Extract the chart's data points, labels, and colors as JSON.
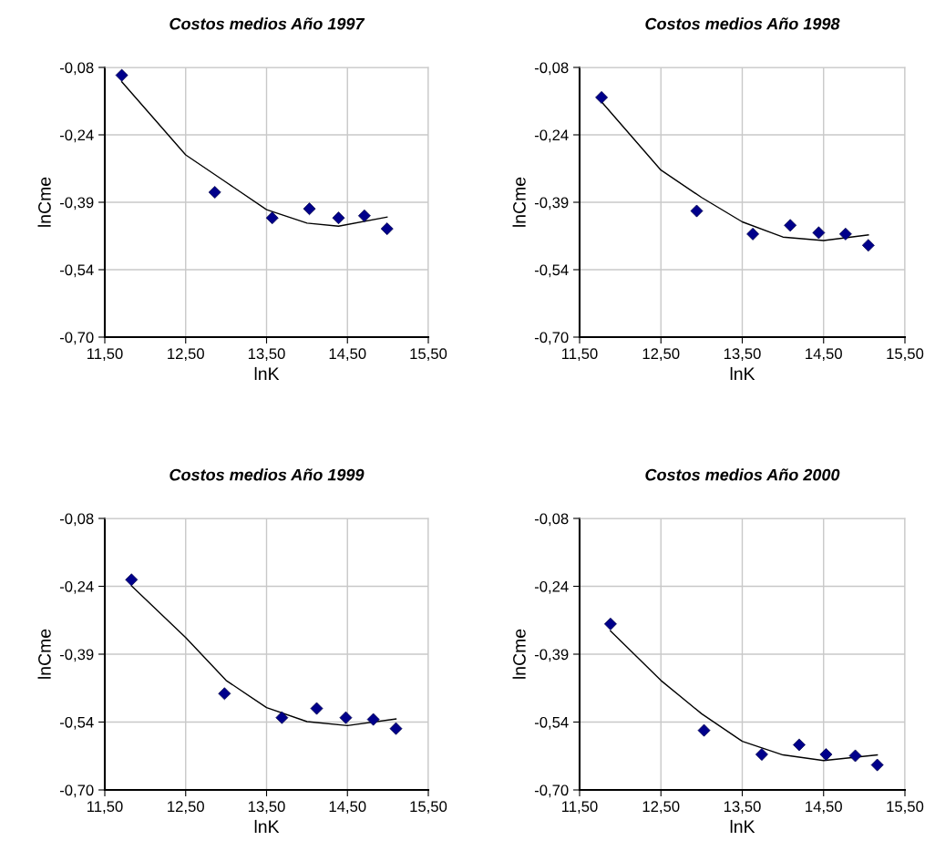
{
  "chart_data": [
    {
      "type": "scatter",
      "title": "Costos medios Año 1997",
      "xlabel": "lnK",
      "ylabel": "lnCme",
      "xlim": [
        11.5,
        15.5
      ],
      "ylim": [
        -0.7,
        -0.08
      ],
      "xticks": [
        {
          "value": 11.5,
          "label": "11,50"
        },
        {
          "value": 12.5,
          "label": "12,50"
        },
        {
          "value": 13.5,
          "label": "13,50"
        },
        {
          "value": 14.5,
          "label": "14,50"
        },
        {
          "value": 15.5,
          "label": "15,50"
        }
      ],
      "yticks": [
        {
          "value": -0.7,
          "label": "-0,70"
        },
        {
          "value": -0.545,
          "label": "-0,54"
        },
        {
          "value": -0.39,
          "label": "-0,39"
        },
        {
          "value": -0.235,
          "label": "-0,24"
        },
        {
          "value": -0.08,
          "label": "-0,08"
        }
      ],
      "grid": true,
      "series": [
        {
          "marker": "diamond",
          "color": "#00008b",
          "x": [
            11.71,
            12.86,
            13.57,
            14.03,
            14.39,
            14.71,
            14.99
          ],
          "values": [
            -0.098,
            -0.367,
            -0.426,
            -0.405,
            -0.426,
            -0.421,
            -0.451
          ]
        },
        {
          "type": "line",
          "marker": "none",
          "line_style": "solid",
          "color": "#000000",
          "x": [
            11.71,
            12.5,
            13.0,
            13.5,
            14.0,
            14.39,
            14.99
          ],
          "values": [
            -0.113,
            -0.281,
            -0.344,
            -0.407,
            -0.438,
            -0.445,
            -0.424
          ]
        }
      ]
    },
    {
      "type": "scatter",
      "title": "Costos medios Año 1998",
      "xlabel": "lnK",
      "ylabel": "lnCme",
      "xlim": [
        11.5,
        15.5
      ],
      "ylim": [
        -0.7,
        -0.08
      ],
      "xticks": [
        {
          "value": 11.5,
          "label": "11,50"
        },
        {
          "value": 12.5,
          "label": "12,50"
        },
        {
          "value": 13.5,
          "label": "13,50"
        },
        {
          "value": 14.5,
          "label": "14,50"
        },
        {
          "value": 15.5,
          "label": "15,50"
        }
      ],
      "yticks": [
        {
          "value": -0.7,
          "label": "-0,70"
        },
        {
          "value": -0.545,
          "label": "-0,54"
        },
        {
          "value": -0.39,
          "label": "-0,39"
        },
        {
          "value": -0.235,
          "label": "-0,24"
        },
        {
          "value": -0.08,
          "label": "-0,08"
        }
      ],
      "grid": true,
      "series": [
        {
          "marker": "diamond",
          "color": "#00008b",
          "x": [
            11.77,
            12.94,
            13.63,
            14.09,
            14.44,
            14.77,
            15.05
          ],
          "values": [
            -0.149,
            -0.41,
            -0.463,
            -0.443,
            -0.46,
            -0.463,
            -0.489
          ]
        },
        {
          "type": "line",
          "marker": "none",
          "line_style": "solid",
          "color": "#000000",
          "x": [
            11.77,
            12.5,
            13.0,
            13.5,
            14.0,
            14.5,
            15.05
          ],
          "values": [
            -0.159,
            -0.316,
            -0.379,
            -0.435,
            -0.47,
            -0.478,
            -0.465
          ]
        }
      ]
    },
    {
      "type": "scatter",
      "title": "Costos medios Año 1999",
      "xlabel": "lnK",
      "ylabel": "lnCme",
      "xlim": [
        11.5,
        15.5
      ],
      "ylim": [
        -0.7,
        -0.08
      ],
      "xticks": [
        {
          "value": 11.5,
          "label": "11,50"
        },
        {
          "value": 12.5,
          "label": "12,50"
        },
        {
          "value": 13.5,
          "label": "13,50"
        },
        {
          "value": 14.5,
          "label": "14,50"
        },
        {
          "value": 15.5,
          "label": "15,50"
        }
      ],
      "yticks": [
        {
          "value": -0.7,
          "label": "-0,70"
        },
        {
          "value": -0.545,
          "label": "-0,54"
        },
        {
          "value": -0.39,
          "label": "-0,39"
        },
        {
          "value": -0.235,
          "label": "-0,24"
        },
        {
          "value": -0.08,
          "label": "-0,08"
        }
      ],
      "grid": true,
      "series": [
        {
          "marker": "diamond",
          "color": "#00008b",
          "x": [
            11.83,
            12.98,
            13.69,
            14.12,
            14.48,
            14.82,
            15.1
          ],
          "values": [
            -0.22,
            -0.48,
            -0.535,
            -0.514,
            -0.535,
            -0.539,
            -0.56
          ]
        },
        {
          "type": "line",
          "marker": "none",
          "line_style": "solid",
          "color": "#000000",
          "x": [
            11.83,
            12.5,
            13.0,
            13.5,
            14.0,
            14.5,
            15.1
          ],
          "values": [
            -0.234,
            -0.352,
            -0.45,
            -0.512,
            -0.544,
            -0.553,
            -0.538
          ]
        }
      ]
    },
    {
      "type": "scatter",
      "title": "Costos medios Año 2000",
      "xlabel": "lnK",
      "ylabel": "lnCme",
      "xlim": [
        11.5,
        15.5
      ],
      "ylim": [
        -0.7,
        -0.08
      ],
      "xticks": [
        {
          "value": 11.5,
          "label": "11,50"
        },
        {
          "value": 12.5,
          "label": "12,50"
        },
        {
          "value": 13.5,
          "label": "13,50"
        },
        {
          "value": 14.5,
          "label": "14,50"
        },
        {
          "value": 15.5,
          "label": "15,50"
        }
      ],
      "yticks": [
        {
          "value": -0.7,
          "label": "-0,70"
        },
        {
          "value": -0.545,
          "label": "-0,54"
        },
        {
          "value": -0.39,
          "label": "-0,39"
        },
        {
          "value": -0.235,
          "label": "-0,24"
        },
        {
          "value": -0.08,
          "label": "-0,08"
        }
      ],
      "grid": true,
      "series": [
        {
          "marker": "diamond",
          "color": "#00008b",
          "x": [
            11.88,
            13.03,
            13.74,
            14.2,
            14.53,
            14.89,
            15.16
          ],
          "values": [
            -0.321,
            -0.564,
            -0.619,
            -0.597,
            -0.619,
            -0.622,
            -0.643
          ]
        },
        {
          "type": "line",
          "marker": "none",
          "line_style": "solid",
          "color": "#000000",
          "x": [
            11.88,
            12.5,
            13.0,
            13.5,
            14.0,
            14.5,
            15.16
          ],
          "values": [
            -0.337,
            -0.45,
            -0.526,
            -0.589,
            -0.62,
            -0.633,
            -0.62
          ]
        }
      ]
    }
  ]
}
